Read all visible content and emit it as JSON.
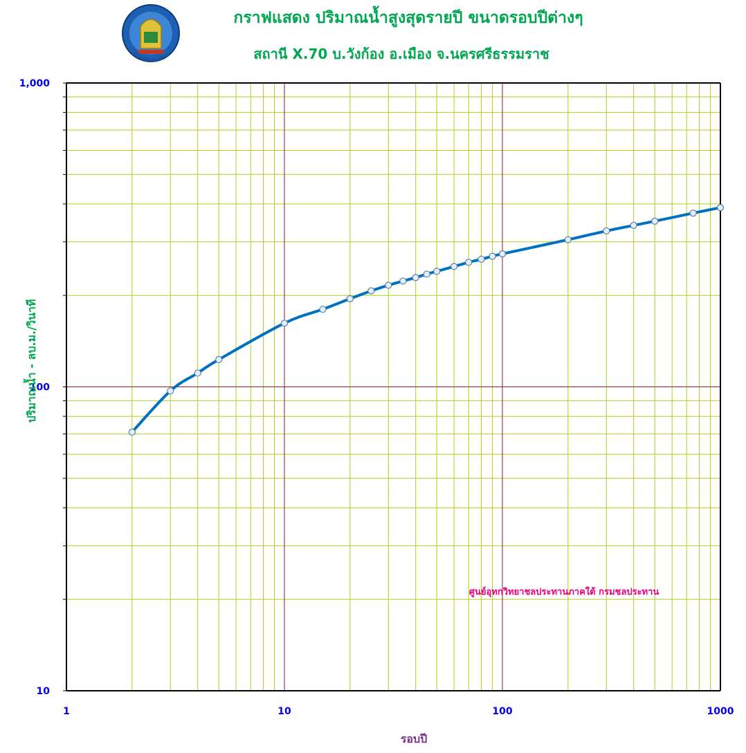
{
  "chart_data": {
    "type": "line",
    "title": "กราฟแสดง ปริมาณน้ำสูงสุดรายปี ขนาดรอบปีต่างๆ",
    "subtitle": "สถานี X.70  บ.วังก้อง อ.เมือง  จ.นครศรีธรรมราช",
    "xlabel": "รอบปี",
    "ylabel": "ปริมาณน้ำ  -  ลบ.ม./วินาที",
    "x_scale": "log",
    "y_scale": "log",
    "xlim": [
      1,
      1000
    ],
    "ylim": [
      10,
      1000
    ],
    "x_ticks": [
      "1",
      "10",
      "100",
      "1000"
    ],
    "y_ticks": [
      "10",
      "100",
      "1,000"
    ],
    "grid": true,
    "annotation": "ศูนย์อุทกวิทยาชลประทานภาคใต้  กรมชลประทาน",
    "logo_text": "กรมชลประทาน",
    "series": [
      {
        "x": [
          2,
          3,
          4,
          5,
          10,
          15,
          20,
          25,
          30,
          35,
          40,
          45,
          50,
          60,
          70,
          80,
          90,
          100,
          200,
          300,
          400,
          500,
          750,
          1000
        ],
        "y": [
          71,
          97,
          111,
          123,
          162,
          180,
          195,
          207,
          216,
          223,
          229,
          235,
          240,
          249,
          257,
          263,
          269,
          274,
          305,
          326,
          340,
          351,
          373,
          389
        ],
        "color": "#0070c0"
      }
    ],
    "colors": {
      "title": "#00a650",
      "y_tick": "#0000ee",
      "x_tick": "#0000ee",
      "xlabel": "#7b2d8e",
      "ylabel": "#00a650",
      "annotation": "#e6007e",
      "minor_grid": "#a8d21c",
      "major_grid": "#8b1a2b",
      "line": "#0070c0",
      "marker_fill": "#e4eef8",
      "marker_edge": "#5b7fa6"
    }
  }
}
